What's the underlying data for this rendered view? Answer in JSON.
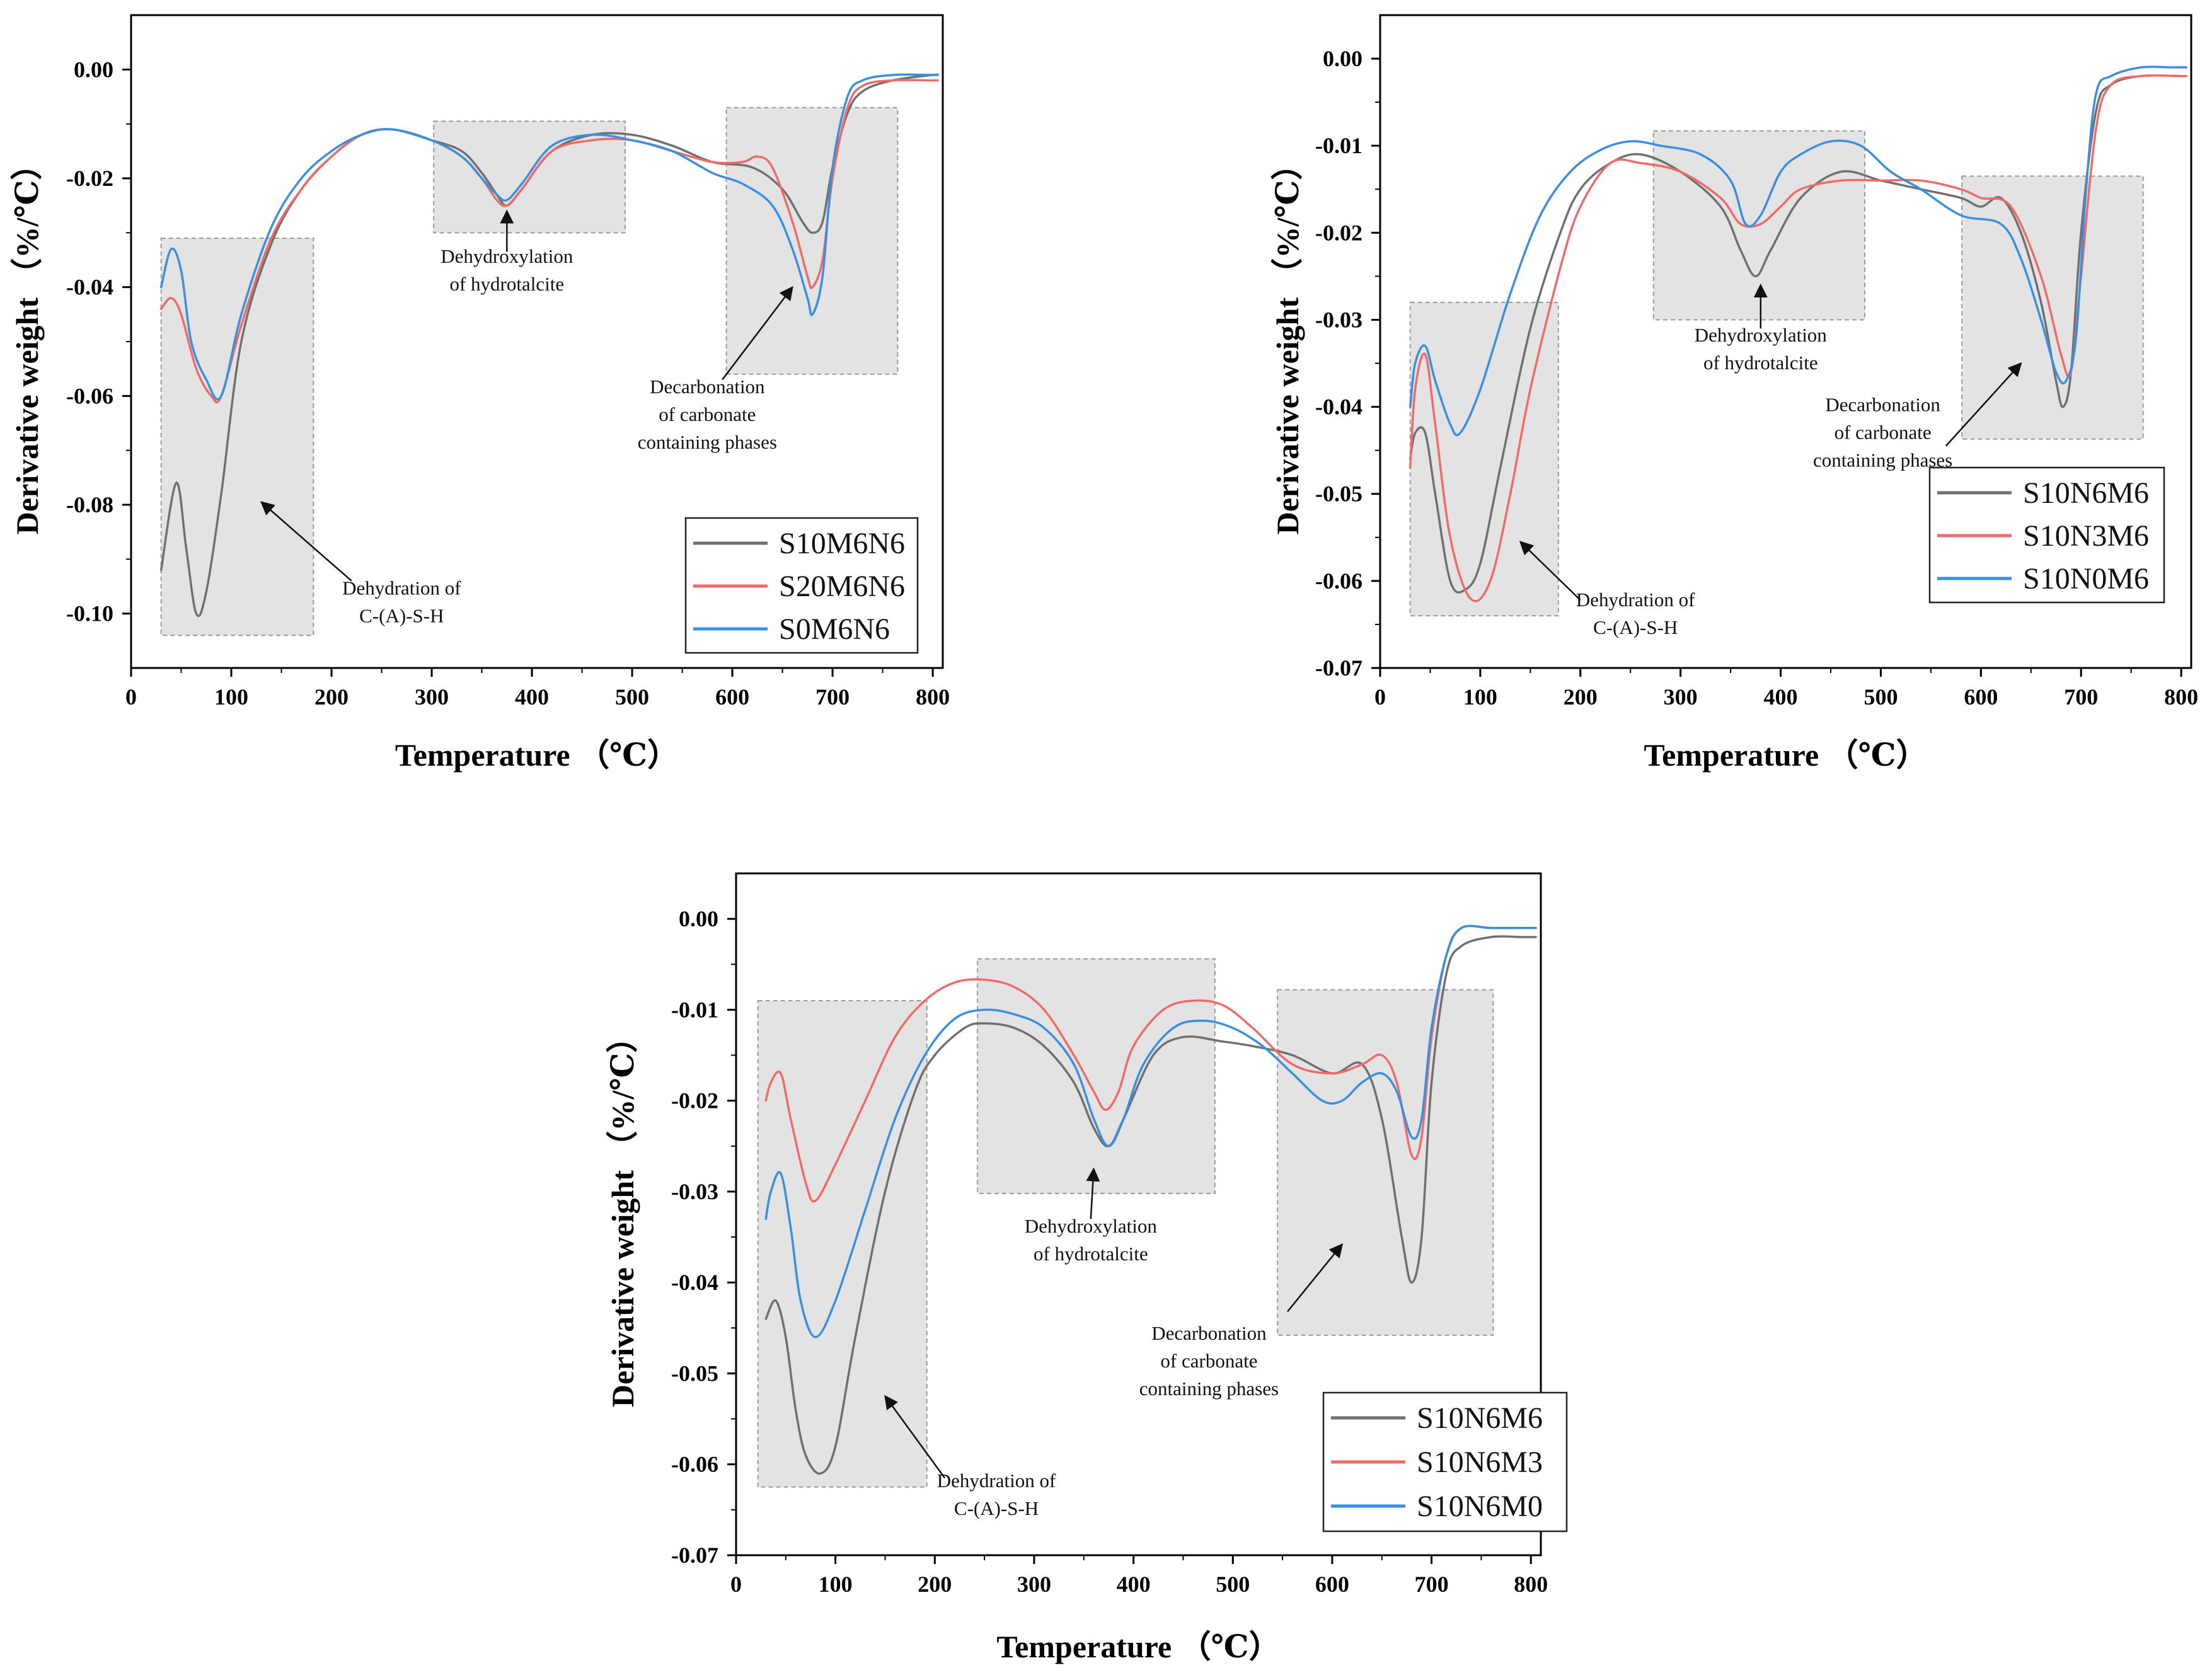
{
  "chart_data": [
    {
      "type": "line",
      "xlabel": "Temperature （℃）",
      "ylabel": "Derivative weight （%/℃）",
      "xlim": [
        0,
        810
      ],
      "ylim": [
        -0.11,
        0.01
      ],
      "xticks": [
        0,
        100,
        200,
        300,
        400,
        500,
        600,
        700,
        800
      ],
      "yticks": [
        0.0,
        -0.02,
        -0.04,
        -0.06,
        -0.08,
        -0.1
      ],
      "ytick_labels": [
        "0.00",
        "-0.02",
        "-0.04",
        "-0.06",
        "-0.08",
        "-0.10"
      ],
      "grid": false,
      "legend_position": "bottom-right",
      "series": [
        {
          "name": "S10M6N6",
          "color": "#707070",
          "x": [
            30,
            45,
            55,
            65,
            75,
            90,
            110,
            140,
            170,
            200,
            230,
            260,
            300,
            330,
            350,
            365,
            375,
            390,
            420,
            460,
            500,
            540,
            580,
            620,
            650,
            670,
            680,
            690,
            700,
            715,
            730,
            760,
            800,
            805
          ],
          "y": [
            -0.092,
            -0.076,
            -0.088,
            -0.1,
            -0.096,
            -0.078,
            -0.05,
            -0.032,
            -0.022,
            -0.016,
            -0.012,
            -0.011,
            -0.013,
            -0.015,
            -0.019,
            -0.023,
            -0.025,
            -0.022,
            -0.015,
            -0.012,
            -0.012,
            -0.014,
            -0.017,
            -0.018,
            -0.022,
            -0.028,
            -0.03,
            -0.028,
            -0.018,
            -0.008,
            -0.004,
            -0.002,
            -0.001,
            -0.001
          ]
        },
        {
          "name": "S20M6N6",
          "color": "#f06a6a",
          "x": [
            30,
            40,
            50,
            65,
            80,
            90,
            110,
            140,
            170,
            200,
            230,
            260,
            300,
            330,
            350,
            365,
            375,
            390,
            420,
            460,
            500,
            540,
            580,
            610,
            625,
            640,
            660,
            675,
            680,
            690,
            700,
            715,
            730,
            760,
            800,
            805
          ],
          "y": [
            -0.044,
            -0.042,
            -0.045,
            -0.055,
            -0.06,
            -0.06,
            -0.047,
            -0.031,
            -0.022,
            -0.016,
            -0.012,
            -0.011,
            -0.013,
            -0.016,
            -0.02,
            -0.024,
            -0.025,
            -0.022,
            -0.015,
            -0.013,
            -0.013,
            -0.015,
            -0.017,
            -0.017,
            -0.016,
            -0.018,
            -0.028,
            -0.038,
            -0.04,
            -0.035,
            -0.02,
            -0.007,
            -0.003,
            -0.002,
            -0.002,
            -0.002
          ]
        },
        {
          "name": "S0M6N6",
          "color": "#3a8fe0",
          "x": [
            30,
            40,
            50,
            60,
            75,
            90,
            110,
            140,
            170,
            200,
            230,
            260,
            300,
            330,
            350,
            365,
            375,
            390,
            420,
            460,
            500,
            540,
            580,
            610,
            640,
            660,
            675,
            680,
            690,
            700,
            715,
            730,
            760,
            800,
            805
          ],
          "y": [
            -0.04,
            -0.033,
            -0.037,
            -0.05,
            -0.057,
            -0.06,
            -0.045,
            -0.029,
            -0.02,
            -0.015,
            -0.012,
            -0.011,
            -0.013,
            -0.016,
            -0.02,
            -0.023,
            -0.024,
            -0.021,
            -0.014,
            -0.012,
            -0.013,
            -0.015,
            -0.019,
            -0.021,
            -0.025,
            -0.033,
            -0.042,
            -0.045,
            -0.038,
            -0.018,
            -0.005,
            -0.002,
            -0.001,
            -0.001,
            -0.001
          ]
        }
      ],
      "boxes": [
        {
          "x": [
            30,
            182
          ],
          "y": [
            -0.104,
            -0.031
          ]
        },
        {
          "x": [
            302,
            493
          ],
          "y": [
            -0.03,
            -0.0095
          ]
        },
        {
          "x": [
            594,
            765
          ],
          "y": [
            -0.056,
            -0.007
          ]
        }
      ],
      "annotations": [
        {
          "lines": [
            "Dehydroxylation",
            "of hydrotalcite"
          ],
          "x": 375,
          "y": -0.0355,
          "arrow_from": [
            375,
            -0.0335
          ],
          "arrow_to": [
            375,
            -0.026
          ]
        },
        {
          "lines": [
            "Decarbonation",
            "of carbonate",
            "containing phases"
          ],
          "x": 575,
          "y": -0.0595,
          "arrow_from": [
            590,
            -0.057
          ],
          "arrow_to": [
            660,
            -0.04
          ]
        },
        {
          "lines": [
            "Dehydration of",
            "C-(A)-S-H"
          ],
          "x": 270,
          "y": -0.0965,
          "arrow_from": [
            220,
            -0.094
          ],
          "arrow_to": [
            130,
            -0.0795
          ]
        }
      ],
      "legend": [
        "S10M6N6",
        "S20M6N6",
        "S0M6N6"
      ]
    },
    {
      "type": "line",
      "xlabel": "Temperature （℃）",
      "ylabel": "Derivative weight （%/℃）",
      "xlim": [
        0,
        810
      ],
      "ylim": [
        -0.07,
        0.005
      ],
      "xticks": [
        0,
        100,
        200,
        300,
        400,
        500,
        600,
        700,
        800
      ],
      "yticks": [
        0.0,
        -0.01,
        -0.02,
        -0.03,
        -0.04,
        -0.05,
        -0.06,
        -0.07
      ],
      "ytick_labels": [
        "0.00",
        "-0.01",
        "-0.02",
        "-0.03",
        "-0.04",
        "-0.05",
        "-0.06",
        "-0.07"
      ],
      "grid": false,
      "legend_position": "bottom-right",
      "series": [
        {
          "name": "S10N6M6",
          "color": "#707070",
          "x": [
            30,
            35,
            45,
            55,
            70,
            85,
            100,
            120,
            150,
            180,
            200,
            230,
            260,
            300,
            340,
            360,
            375,
            390,
            420,
            460,
            500,
            540,
            580,
            600,
            620,
            640,
            660,
            675,
            682,
            690,
            700,
            715,
            730,
            760,
            800,
            805
          ],
          "y": [
            -0.046,
            -0.043,
            -0.043,
            -0.05,
            -0.06,
            -0.061,
            -0.058,
            -0.047,
            -0.031,
            -0.02,
            -0.015,
            -0.012,
            -0.011,
            -0.013,
            -0.017,
            -0.022,
            -0.025,
            -0.022,
            -0.016,
            -0.013,
            -0.014,
            -0.015,
            -0.016,
            -0.017,
            -0.016,
            -0.02,
            -0.028,
            -0.037,
            -0.04,
            -0.036,
            -0.02,
            -0.006,
            -0.003,
            -0.002,
            -0.002,
            -0.002
          ]
        },
        {
          "name": "S10N3M6",
          "color": "#f06a6a",
          "x": [
            30,
            35,
            45,
            55,
            70,
            90,
            110,
            130,
            150,
            180,
            200,
            230,
            260,
            300,
            340,
            360,
            380,
            400,
            420,
            460,
            500,
            540,
            580,
            600,
            630,
            660,
            680,
            690,
            700,
            715,
            730,
            760,
            800,
            805
          ],
          "y": [
            -0.047,
            -0.038,
            -0.034,
            -0.042,
            -0.055,
            -0.062,
            -0.06,
            -0.05,
            -0.038,
            -0.024,
            -0.017,
            -0.012,
            -0.012,
            -0.013,
            -0.016,
            -0.019,
            -0.019,
            -0.017,
            -0.015,
            -0.014,
            -0.014,
            -0.014,
            -0.015,
            -0.016,
            -0.017,
            -0.025,
            -0.034,
            -0.036,
            -0.025,
            -0.008,
            -0.003,
            -0.002,
            -0.002,
            -0.002
          ]
        },
        {
          "name": "S10N0M6",
          "color": "#3a8fe0",
          "x": [
            30,
            35,
            45,
            55,
            70,
            80,
            100,
            130,
            160,
            190,
            220,
            250,
            280,
            320,
            350,
            365,
            380,
            400,
            420,
            450,
            480,
            510,
            540,
            580,
            620,
            640,
            660,
            675,
            685,
            695,
            705,
            715,
            730,
            760,
            790,
            800,
            805
          ],
          "y": [
            -0.04,
            -0.035,
            -0.033,
            -0.037,
            -0.042,
            -0.043,
            -0.038,
            -0.027,
            -0.018,
            -0.013,
            -0.0105,
            -0.0095,
            -0.01,
            -0.011,
            -0.014,
            -0.019,
            -0.018,
            -0.013,
            -0.011,
            -0.0095,
            -0.01,
            -0.013,
            -0.015,
            -0.018,
            -0.019,
            -0.023,
            -0.03,
            -0.036,
            -0.037,
            -0.032,
            -0.015,
            -0.004,
            -0.002,
            -0.001,
            -0.001,
            -0.001,
            -0.001
          ]
        }
      ],
      "boxes": [
        {
          "x": [
            30,
            178
          ],
          "y": [
            -0.064,
            -0.028
          ]
        },
        {
          "x": [
            273,
            484
          ],
          "y": [
            -0.03,
            -0.0083
          ]
        },
        {
          "x": [
            581,
            762
          ],
          "y": [
            -0.0437,
            -0.0135
          ]
        }
      ],
      "annotations": [
        {
          "lines": [
            "Dehydroxylation",
            "of hydrotalcite"
          ],
          "x": 380,
          "y": -0.0325,
          "arrow_from": [
            380,
            -0.031
          ],
          "arrow_to": [
            380,
            -0.026
          ]
        },
        {
          "lines": [
            "Decarbonation",
            "of carbonate",
            "containing phases"
          ],
          "x": 502,
          "y": -0.0405,
          "arrow_from": [
            565,
            -0.0445
          ],
          "arrow_to": [
            640,
            -0.035
          ]
        },
        {
          "lines": [
            "Dehydration of",
            "C-(A)-S-H"
          ],
          "x": 255,
          "y": -0.0629,
          "arrow_from": [
            200,
            -0.0622
          ],
          "arrow_to": [
            140,
            -0.0555
          ]
        }
      ],
      "legend": [
        "S10N6M6",
        "S10N3M6",
        "S10N0M6"
      ]
    },
    {
      "type": "line",
      "xlabel": "Temperature （℃）",
      "ylabel": "Derivative weight （%/℃）",
      "xlim": [
        0,
        810
      ],
      "ylim": [
        -0.07,
        0.005
      ],
      "xticks": [
        0,
        100,
        200,
        300,
        400,
        500,
        600,
        700,
        800
      ],
      "yticks": [
        0.0,
        -0.01,
        -0.02,
        -0.03,
        -0.04,
        -0.05,
        -0.06,
        -0.07
      ],
      "ytick_labels": [
        "0.00",
        "-0.01",
        "-0.02",
        "-0.03",
        "-0.04",
        "-0.05",
        "-0.06",
        "-0.07"
      ],
      "grid": false,
      "legend_position": "bottom-right",
      "series": [
        {
          "name": "S10N6M6",
          "color": "#707070",
          "x": [
            30,
            40,
            50,
            60,
            70,
            85,
            100,
            120,
            150,
            180,
            200,
            230,
            250,
            280,
            310,
            340,
            360,
            375,
            390,
            420,
            450,
            490,
            520,
            560,
            600,
            630,
            650,
            670,
            680,
            690,
            700,
            715,
            730,
            760,
            790,
            805
          ],
          "y": [
            -0.044,
            -0.042,
            -0.046,
            -0.054,
            -0.059,
            -0.061,
            -0.058,
            -0.046,
            -0.03,
            -0.019,
            -0.015,
            -0.012,
            -0.0115,
            -0.012,
            -0.014,
            -0.018,
            -0.023,
            -0.025,
            -0.022,
            -0.015,
            -0.013,
            -0.0135,
            -0.014,
            -0.015,
            -0.017,
            -0.016,
            -0.022,
            -0.035,
            -0.04,
            -0.035,
            -0.018,
            -0.006,
            -0.003,
            -0.002,
            -0.002,
            -0.002
          ]
        },
        {
          "name": "S10N6M3",
          "color": "#f06a6a",
          "x": [
            30,
            35,
            45,
            55,
            70,
            80,
            100,
            130,
            160,
            190,
            220,
            250,
            280,
            310,
            340,
            360,
            372,
            385,
            400,
            430,
            460,
            490,
            520,
            560,
            600,
            630,
            650,
            665,
            680,
            690,
            700,
            715,
            730,
            760,
            790,
            805
          ],
          "y": [
            -0.02,
            -0.018,
            -0.017,
            -0.022,
            -0.029,
            -0.031,
            -0.027,
            -0.02,
            -0.013,
            -0.009,
            -0.007,
            -0.0067,
            -0.0075,
            -0.01,
            -0.015,
            -0.019,
            -0.021,
            -0.019,
            -0.014,
            -0.01,
            -0.009,
            -0.0095,
            -0.012,
            -0.016,
            -0.017,
            -0.016,
            -0.015,
            -0.018,
            -0.026,
            -0.024,
            -0.013,
            -0.004,
            -0.001,
            -0.001,
            -0.001,
            -0.001
          ]
        },
        {
          "name": "S10N6M0",
          "color": "#3a8fe0",
          "x": [
            30,
            35,
            45,
            55,
            65,
            80,
            100,
            130,
            160,
            190,
            220,
            250,
            280,
            310,
            340,
            360,
            375,
            390,
            410,
            440,
            470,
            500,
            530,
            560,
            590,
            610,
            630,
            650,
            665,
            680,
            690,
            700,
            715,
            730,
            760,
            790,
            805
          ],
          "y": [
            -0.033,
            -0.03,
            -0.028,
            -0.034,
            -0.042,
            -0.046,
            -0.042,
            -0.032,
            -0.022,
            -0.015,
            -0.011,
            -0.01,
            -0.0105,
            -0.012,
            -0.016,
            -0.022,
            -0.025,
            -0.022,
            -0.016,
            -0.012,
            -0.0112,
            -0.012,
            -0.014,
            -0.017,
            -0.02,
            -0.02,
            -0.018,
            -0.017,
            -0.019,
            -0.024,
            -0.022,
            -0.012,
            -0.004,
            -0.001,
            -0.001,
            -0.001,
            -0.001
          ]
        }
      ],
      "boxes": [
        {
          "x": [
            22,
            192
          ],
          "y": [
            -0.0625,
            -0.009
          ]
        },
        {
          "x": [
            243,
            482
          ],
          "y": [
            -0.0302,
            -0.0044
          ]
        },
        {
          "x": [
            545,
            762
          ],
          "y": [
            -0.0458,
            -0.0078
          ]
        }
      ],
      "annotations": [
        {
          "lines": [
            "Dehydroxylation",
            "of hydrotalcite"
          ],
          "x": 357,
          "y": -0.0345,
          "arrow_from": [
            357,
            -0.033
          ],
          "arrow_to": [
            360,
            -0.0275
          ]
        },
        {
          "lines": [
            "Decarbonation",
            "of carbonate",
            "containing phases"
          ],
          "x": 476,
          "y": -0.0463,
          "arrow_from": [
            555,
            -0.0432
          ],
          "arrow_to": [
            610,
            -0.0358
          ]
        },
        {
          "lines": [
            "Dehydration of",
            "C-(A)-S-H"
          ],
          "x": 262,
          "y": -0.0625,
          "arrow_from": [
            210,
            -0.0615
          ],
          "arrow_to": [
            150,
            -0.0525
          ]
        }
      ],
      "legend": [
        "S10N6M6",
        "S10N6M3",
        "S10N6M0"
      ]
    }
  ]
}
